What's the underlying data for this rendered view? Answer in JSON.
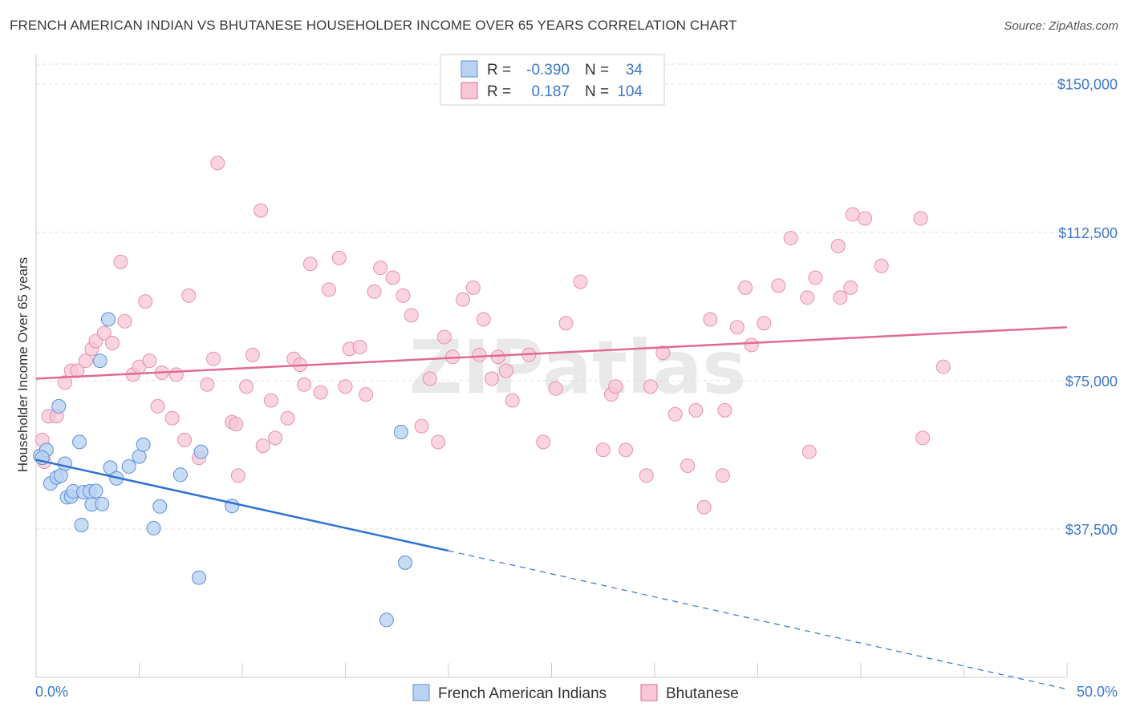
{
  "title": "FRENCH AMERICAN INDIAN VS BHUTANESE HOUSEHOLDER INCOME OVER 65 YEARS CORRELATION CHART",
  "source": "Source: ZipAtlas.com",
  "colors": {
    "blue": "#5b8fd8",
    "blue_fill": "#b9d2f3",
    "pink": "#e06a94",
    "pink_fill": "#f8c6d6",
    "accent": "#3d78c9"
  },
  "legend": {
    "rows": [
      {
        "r_label": "R =",
        "r_value": "-0.390",
        "n_label": "N =",
        "n_value": "34",
        "color": "blue"
      },
      {
        "r_label": "R =",
        "r_value": "0.187",
        "n_label": "N =",
        "n_value": "104",
        "color": "pink"
      }
    ]
  },
  "bottom_legend": [
    "French American Indians",
    "Bhutanese"
  ],
  "chart_data": {
    "type": "scatter",
    "title": "FRENCH AMERICAN INDIAN VS BHUTANESE HOUSEHOLDER INCOME OVER 65 YEARS CORRELATION CHART",
    "xlabel": "",
    "ylabel": "Householder Income Over 65 years",
    "xlim": [
      0,
      50
    ],
    "ylim": [
      0,
      155000
    ],
    "x_tick_labels": [
      "0.0%",
      "50.0%"
    ],
    "y_ticks": [
      37500,
      75000,
      112500,
      150000
    ],
    "y_tick_labels": [
      "$37,500",
      "$75,000",
      "$112,500",
      "$150,000"
    ],
    "watermark": "ZIPatlas",
    "series": [
      {
        "name": "French American Indians",
        "color": "blue",
        "points": [
          [
            0.2,
            56000
          ],
          [
            0.5,
            57500
          ],
          [
            0.7,
            49000
          ],
          [
            1.0,
            50500
          ],
          [
            1.1,
            68500
          ],
          [
            1.2,
            51000
          ],
          [
            1.4,
            54000
          ],
          [
            1.5,
            45500
          ],
          [
            1.7,
            45700
          ],
          [
            1.8,
            47000
          ],
          [
            2.1,
            59500
          ],
          [
            2.2,
            38500
          ],
          [
            2.3,
            46800
          ],
          [
            2.6,
            47000
          ],
          [
            2.7,
            43700
          ],
          [
            2.9,
            47100
          ],
          [
            3.1,
            80000
          ],
          [
            3.2,
            43800
          ],
          [
            3.5,
            90500
          ],
          [
            3.6,
            53000
          ],
          [
            3.9,
            50300
          ],
          [
            4.5,
            53300
          ],
          [
            5.0,
            55800
          ],
          [
            5.2,
            58800
          ],
          [
            5.7,
            37700
          ],
          [
            6.0,
            43200
          ],
          [
            7.0,
            51200
          ],
          [
            7.9,
            25200
          ],
          [
            8.0,
            57000
          ],
          [
            9.5,
            43300
          ],
          [
            17.0,
            14500
          ],
          [
            17.7,
            62000
          ],
          [
            17.9,
            29000
          ],
          [
            0.3,
            55500
          ]
        ]
      },
      {
        "name": "Bhutanese",
        "color": "pink",
        "points": [
          [
            0.3,
            60000
          ],
          [
            0.4,
            54500
          ],
          [
            0.6,
            66000
          ],
          [
            1.0,
            66000
          ],
          [
            1.4,
            74500
          ],
          [
            1.7,
            77500
          ],
          [
            2.0,
            77500
          ],
          [
            2.4,
            80000
          ],
          [
            2.7,
            83000
          ],
          [
            2.9,
            85000
          ],
          [
            3.3,
            87000
          ],
          [
            3.7,
            84500
          ],
          [
            4.1,
            105000
          ],
          [
            4.3,
            90000
          ],
          [
            4.7,
            76500
          ],
          [
            5.0,
            78500
          ],
          [
            5.3,
            95000
          ],
          [
            5.5,
            80000
          ],
          [
            5.9,
            68500
          ],
          [
            6.1,
            77000
          ],
          [
            6.6,
            65500
          ],
          [
            6.8,
            76500
          ],
          [
            7.2,
            60000
          ],
          [
            7.4,
            96500
          ],
          [
            7.9,
            55500
          ],
          [
            8.3,
            74000
          ],
          [
            8.6,
            80500
          ],
          [
            8.8,
            130000
          ],
          [
            9.5,
            64500
          ],
          [
            9.7,
            64000
          ],
          [
            9.8,
            51000
          ],
          [
            10.2,
            73500
          ],
          [
            10.5,
            81500
          ],
          [
            10.9,
            118000
          ],
          [
            11.0,
            58500
          ],
          [
            11.4,
            70000
          ],
          [
            11.6,
            60500
          ],
          [
            12.2,
            65500
          ],
          [
            12.5,
            80500
          ],
          [
            12.8,
            79000
          ],
          [
            13.0,
            74000
          ],
          [
            13.3,
            104500
          ],
          [
            13.8,
            72000
          ],
          [
            14.2,
            98000
          ],
          [
            14.7,
            106000
          ],
          [
            15.0,
            73500
          ],
          [
            15.2,
            83000
          ],
          [
            15.7,
            83500
          ],
          [
            16.0,
            71500
          ],
          [
            16.4,
            97500
          ],
          [
            16.7,
            103500
          ],
          [
            17.3,
            101000
          ],
          [
            17.8,
            96500
          ],
          [
            18.2,
            91500
          ],
          [
            18.7,
            63500
          ],
          [
            19.1,
            75500
          ],
          [
            19.5,
            59500
          ],
          [
            19.8,
            86000
          ],
          [
            20.2,
            81000
          ],
          [
            20.7,
            95500
          ],
          [
            21.2,
            98500
          ],
          [
            21.5,
            81500
          ],
          [
            21.7,
            90500
          ],
          [
            22.1,
            75500
          ],
          [
            22.4,
            81000
          ],
          [
            22.8,
            77500
          ],
          [
            23.1,
            70000
          ],
          [
            23.9,
            81500
          ],
          [
            24.6,
            59500
          ],
          [
            25.2,
            73000
          ],
          [
            25.7,
            89500
          ],
          [
            26.4,
            100000
          ],
          [
            27.5,
            57500
          ],
          [
            27.9,
            71500
          ],
          [
            28.1,
            73500
          ],
          [
            28.6,
            57500
          ],
          [
            29.6,
            51000
          ],
          [
            29.8,
            73500
          ],
          [
            30.4,
            82000
          ],
          [
            31.0,
            66500
          ],
          [
            31.6,
            53500
          ],
          [
            32.0,
            67500
          ],
          [
            32.4,
            43000
          ],
          [
            32.7,
            90500
          ],
          [
            33.3,
            51000
          ],
          [
            33.4,
            67500
          ],
          [
            34.0,
            88500
          ],
          [
            34.4,
            98500
          ],
          [
            34.7,
            84000
          ],
          [
            35.3,
            89500
          ],
          [
            36.0,
            99000
          ],
          [
            36.6,
            111000
          ],
          [
            37.4,
            96000
          ],
          [
            37.5,
            57000
          ],
          [
            37.8,
            101000
          ],
          [
            38.9,
            109000
          ],
          [
            39.0,
            96000
          ],
          [
            39.5,
            98500
          ],
          [
            39.6,
            117000
          ],
          [
            40.2,
            116000
          ],
          [
            41.0,
            104000
          ],
          [
            42.9,
            116000
          ],
          [
            43.0,
            60500
          ],
          [
            44.0,
            78500
          ]
        ]
      }
    ],
    "trend_lines": [
      {
        "series": "French American Indians",
        "x": [
          0,
          20
        ],
        "y": [
          55000,
          32000
        ],
        "extended_to": [
          50,
          -3000
        ],
        "dashed_from": 20
      },
      {
        "series": "Bhutanese",
        "x": [
          0,
          50
        ],
        "y": [
          75500,
          88500
        ]
      }
    ]
  }
}
